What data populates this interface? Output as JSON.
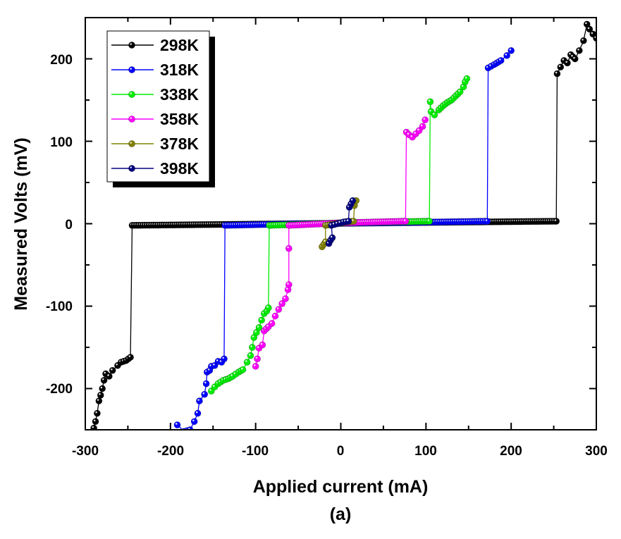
{
  "chart_data": {
    "type": "scatter",
    "title": "",
    "caption": "(a)",
    "xlabel": "Applied current (mA)",
    "ylabel": "Measured Volts (mV)",
    "xlim": [
      -300,
      300
    ],
    "ylim": [
      -250,
      250
    ],
    "xticks": [
      -300,
      -200,
      -100,
      0,
      100,
      200,
      300
    ],
    "yticks": [
      -200,
      -100,
      0,
      100,
      200
    ],
    "xtick_labels": [
      "-300",
      "-200",
      "-100",
      "0",
      "100",
      "200",
      "300"
    ],
    "ytick_labels": [
      "-200",
      "-100",
      "0",
      "100",
      "200"
    ],
    "grid": false,
    "legend_position": "top-left",
    "series": [
      {
        "name": "298K",
        "color": "#000000",
        "points": [
          [
            -290,
            -248
          ],
          [
            -288,
            -240
          ],
          [
            -286,
            -230
          ],
          [
            -284,
            -215
          ],
          [
            -282,
            -208
          ],
          [
            -280,
            -200
          ],
          [
            -278,
            -190
          ],
          [
            -276,
            -182
          ],
          [
            -272,
            -185
          ],
          [
            -268,
            -178
          ],
          [
            -262,
            -172
          ],
          [
            -258,
            -168
          ],
          [
            -252,
            -166
          ],
          [
            -247,
            -162
          ],
          [
            -245,
            -2
          ],
          [
            -150,
            -1
          ],
          [
            -50,
            0
          ],
          [
            50,
            1
          ],
          [
            150,
            2
          ],
          [
            253,
            3
          ],
          [
            254,
            182
          ],
          [
            258,
            190
          ],
          [
            262,
            198
          ],
          [
            266,
            195
          ],
          [
            270,
            205
          ],
          [
            275,
            200
          ],
          [
            280,
            210
          ],
          [
            285,
            222
          ],
          [
            289,
            242
          ],
          [
            292,
            236
          ],
          [
            296,
            230
          ],
          [
            300,
            225
          ]
        ]
      },
      {
        "name": "318K",
        "color": "#0000ff",
        "points": [
          [
            -192,
            -244
          ],
          [
            -184,
            -252
          ],
          [
            -177,
            -250
          ],
          [
            -172,
            -240
          ],
          [
            -168,
            -230
          ],
          [
            -166,
            -215
          ],
          [
            -160,
            -207
          ],
          [
            -158,
            -194
          ],
          [
            -157,
            -180
          ],
          [
            -154,
            -178
          ],
          [
            -152,
            -173
          ],
          [
            -148,
            -172
          ],
          [
            -144,
            -167
          ],
          [
            -140,
            -168
          ],
          [
            -137,
            -164
          ],
          [
            -136,
            -2
          ],
          [
            -50,
            0
          ],
          [
            50,
            1
          ],
          [
            172,
            3
          ],
          [
            173,
            189
          ],
          [
            180,
            193
          ],
          [
            188,
            198
          ],
          [
            195,
            204
          ],
          [
            200,
            210
          ]
        ]
      },
      {
        "name": "338K",
        "color": "#00ee00",
        "points": [
          [
            -152,
            -203
          ],
          [
            -148,
            -198
          ],
          [
            -144,
            -194
          ],
          [
            -138,
            -190
          ],
          [
            -132,
            -188
          ],
          [
            -127,
            -185
          ],
          [
            -120,
            -180
          ],
          [
            -115,
            -177
          ],
          [
            -110,
            -168
          ],
          [
            -106,
            -160
          ],
          [
            -104,
            -150
          ],
          [
            -102,
            -138
          ],
          [
            -99,
            -132
          ],
          [
            -96,
            -126
          ],
          [
            -93,
            -117
          ],
          [
            -90,
            -109
          ],
          [
            -87,
            -106
          ],
          [
            -85,
            -102
          ],
          [
            -84,
            -2
          ],
          [
            0,
            1
          ],
          [
            104,
            3
          ],
          [
            105,
            148
          ],
          [
            106,
            136
          ],
          [
            110,
            132
          ],
          [
            115,
            138
          ],
          [
            120,
            143
          ],
          [
            125,
            147
          ],
          [
            130,
            150
          ],
          [
            135,
            155
          ],
          [
            140,
            160
          ],
          [
            144,
            166
          ],
          [
            146,
            172
          ],
          [
            148,
            176
          ]
        ]
      },
      {
        "name": "358K",
        "color": "#ff00ff",
        "points": [
          [
            -100,
            -173
          ],
          [
            -98,
            -164
          ],
          [
            -96,
            -151
          ],
          [
            -92,
            -147
          ],
          [
            -90,
            -130
          ],
          [
            -85,
            -125
          ],
          [
            -81,
            -121
          ],
          [
            -77,
            -112
          ],
          [
            -73,
            -104
          ],
          [
            -69,
            -97
          ],
          [
            -65,
            -91
          ],
          [
            -62,
            -80
          ],
          [
            -61,
            -74
          ],
          [
            -61,
            -30
          ],
          [
            -61,
            -2
          ],
          [
            0,
            1
          ],
          [
            76,
            3
          ],
          [
            77,
            111
          ],
          [
            80,
            108
          ],
          [
            84,
            105
          ],
          [
            88,
            109
          ],
          [
            92,
            113
          ],
          [
            96,
            118
          ],
          [
            99,
            126
          ]
        ]
      },
      {
        "name": "378K",
        "color": "#808000",
        "points": [
          [
            -22,
            -28
          ],
          [
            -20,
            -25
          ],
          [
            -18,
            -22
          ],
          [
            -18,
            -2
          ],
          [
            -5,
            0
          ],
          [
            5,
            2
          ],
          [
            15,
            3
          ],
          [
            16,
            22
          ],
          [
            18,
            28
          ]
        ]
      },
      {
        "name": "398K",
        "color": "#000080",
        "points": [
          [
            -14,
            -24
          ],
          [
            -12,
            -20
          ],
          [
            -10,
            -17
          ],
          [
            -11,
            -2
          ],
          [
            -4,
            0
          ],
          [
            3,
            2
          ],
          [
            9,
            3
          ],
          [
            10,
            20
          ],
          [
            12,
            24
          ],
          [
            14,
            28
          ]
        ]
      }
    ]
  }
}
